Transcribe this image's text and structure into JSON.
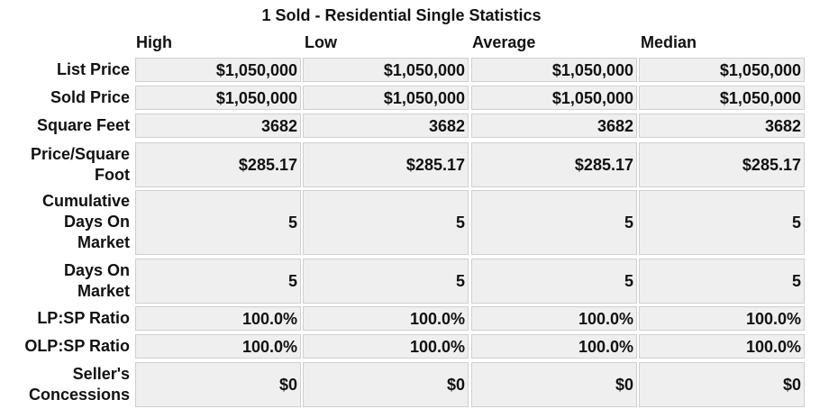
{
  "title": "1 Sold - Residential Single Statistics",
  "columns": [
    "High",
    "Low",
    "Average",
    "Median"
  ],
  "rows": [
    {
      "label": "List Price",
      "values": [
        "$1,050,000",
        "$1,050,000",
        "$1,050,000",
        "$1,050,000"
      ]
    },
    {
      "label": "Sold Price",
      "values": [
        "$1,050,000",
        "$1,050,000",
        "$1,050,000",
        "$1,050,000"
      ]
    },
    {
      "label": "Square Feet",
      "values": [
        "3682",
        "3682",
        "3682",
        "3682"
      ]
    },
    {
      "label": "Price/Square Foot",
      "values": [
        "$285.17",
        "$285.17",
        "$285.17",
        "$285.17"
      ]
    },
    {
      "label": "Cumulative Days On Market",
      "values": [
        "5",
        "5",
        "5",
        "5"
      ]
    },
    {
      "label": "Days On Market",
      "values": [
        "5",
        "5",
        "5",
        "5"
      ]
    },
    {
      "label": "LP:SP Ratio",
      "values": [
        "100.0%",
        "100.0%",
        "100.0%",
        "100.0%"
      ]
    },
    {
      "label": "OLP:SP Ratio",
      "values": [
        "100.0%",
        "100.0%",
        "100.0%",
        "100.0%"
      ]
    },
    {
      "label": "Seller's Concessions",
      "values": [
        "$0",
        "$0",
        "$0",
        "$0"
      ]
    }
  ]
}
